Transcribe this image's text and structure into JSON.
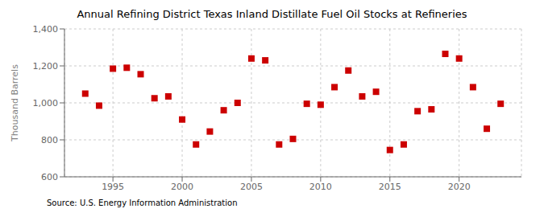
{
  "chart_data": {
    "type": "scatter",
    "title": "Annual Refining District Texas Inland Distillate Fuel Oil Stocks at Refineries",
    "ylabel": "Thousand Barrels",
    "annotations": [
      "Source: U.S. Energy Information Administration"
    ],
    "x": [
      1993,
      1994,
      1995,
      1996,
      1997,
      1998,
      1999,
      2000,
      2001,
      2002,
      2003,
      2004,
      2005,
      2006,
      2007,
      2008,
      2009,
      2010,
      2011,
      2012,
      2013,
      2014,
      2015,
      2016,
      2017,
      2018,
      2019,
      2020,
      2021,
      2022,
      2023
    ],
    "values": [
      1050,
      985,
      1185,
      1190,
      1155,
      1025,
      1035,
      910,
      775,
      845,
      960,
      1000,
      1240,
      1230,
      775,
      805,
      995,
      990,
      1085,
      1175,
      1035,
      1060,
      745,
      775,
      955,
      965,
      1265,
      1240,
      1085,
      860,
      995
    ],
    "color": "#cc0000",
    "marker": "square",
    "xlim": [
      1991.5,
      2024.5
    ],
    "xticks": [
      1995,
      2000,
      2005,
      2010,
      2015,
      2020
    ],
    "ylim": [
      600,
      1400
    ],
    "yticks": [
      600,
      800,
      {
        "value": 1000,
        "label": "1,000"
      },
      {
        "value": 1200,
        "label": "1,200"
      },
      {
        "value": 1400,
        "label": "1,400"
      }
    ],
    "grid": true
  }
}
